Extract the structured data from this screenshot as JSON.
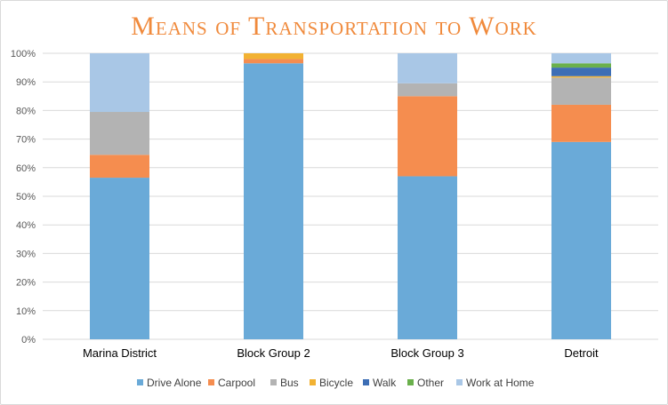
{
  "chart_data": {
    "type": "bar",
    "stacked": true,
    "title": "Means of Transportation to Work",
    "xlabel": "",
    "ylabel": "",
    "ylim": [
      0,
      100
    ],
    "yticks": [
      "0%",
      "10%",
      "20%",
      "30%",
      "40%",
      "50%",
      "60%",
      "70%",
      "80%",
      "90%",
      "100%"
    ],
    "categories": [
      "Marina District",
      "Block Group 2",
      "Block Group 3",
      "Detroit"
    ],
    "series": [
      {
        "name": "Drive Alone",
        "color": "#6aaad8",
        "values": [
          56.5,
          96.5,
          57,
          69
        ]
      },
      {
        "name": "Carpool",
        "color": "#f58d4f",
        "values": [
          8,
          1.5,
          28,
          13
        ]
      },
      {
        "name": "Bus",
        "color": "#b3b3b3",
        "values": [
          15,
          0,
          4.5,
          9.5
        ]
      },
      {
        "name": "Bicycle",
        "color": "#f2b233",
        "values": [
          0,
          2,
          0,
          0.5
        ]
      },
      {
        "name": "Walk",
        "color": "#3d6eb5",
        "values": [
          0,
          0,
          0,
          3
        ]
      },
      {
        "name": "Other",
        "color": "#6ab04c",
        "values": [
          0,
          0,
          0,
          1.5
        ]
      },
      {
        "name": "Work at Home",
        "color": "#a9c7e6",
        "values": [
          20.5,
          0,
          10.5,
          3.5
        ]
      }
    ],
    "legend_position": "bottom",
    "grid": true
  }
}
